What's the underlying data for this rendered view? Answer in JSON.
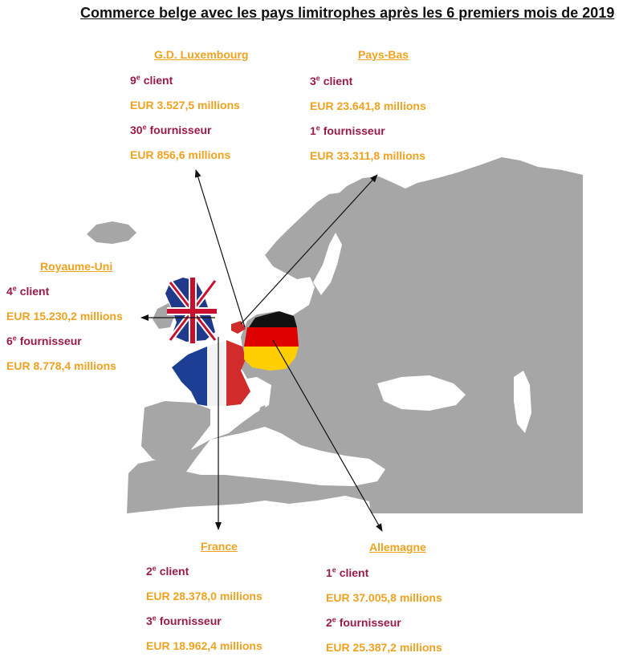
{
  "title": "Commerce belge avec les pays limitrophes après les 6 premiers mois de 2019",
  "colors": {
    "rank_text": "#9c1a45",
    "amount_text": "#f0a21f",
    "land": "#a6a6a6",
    "sea": "#ffffff"
  },
  "countries": {
    "luxembourg": {
      "name": "G.D. Luxembourg",
      "client_num": "9",
      "client_sup": "e",
      "client_word": " client",
      "client_value": "EUR 3.527,5 millions",
      "supplier_num": "30",
      "supplier_sup": "e",
      "supplier_word": " fournisseur",
      "supplier_value": "EUR 856,6 millions"
    },
    "netherlands": {
      "name": "Pays-Bas",
      "client_num": "3",
      "client_sup": "e",
      "client_word": " client",
      "client_value": "EUR 23.641,8 millions",
      "supplier_num": "1",
      "supplier_sup": "e",
      "supplier_word": " fournisseur",
      "supplier_value": "EUR 33.311,8 millions"
    },
    "uk": {
      "name": "Royaume-Uni",
      "client_num": "4",
      "client_sup": "e",
      "client_word": " client",
      "client_value": "EUR 15.230,2 millions",
      "supplier_num": "6",
      "supplier_sup": "e",
      "supplier_word": " fournisseur",
      "supplier_value": "EUR 8.778,4 millions"
    },
    "france": {
      "name": "France",
      "client_num": "2",
      "client_sup": "e",
      "client_word": " client",
      "client_value": "EUR 28.378,0 millions",
      "supplier_num": "3",
      "supplier_sup": "e",
      "supplier_word": " fournisseur",
      "supplier_value": "EUR 18.962,4 millions"
    },
    "germany": {
      "name": "Allemagne",
      "client_num": "1",
      "client_sup": "e",
      "client_word": " client",
      "client_value": "EUR 37.005,8 millions",
      "supplier_num": "2",
      "supplier_sup": "e",
      "supplier_word": " fournisseur",
      "supplier_value": "EUR 25.387,2 millions"
    }
  }
}
